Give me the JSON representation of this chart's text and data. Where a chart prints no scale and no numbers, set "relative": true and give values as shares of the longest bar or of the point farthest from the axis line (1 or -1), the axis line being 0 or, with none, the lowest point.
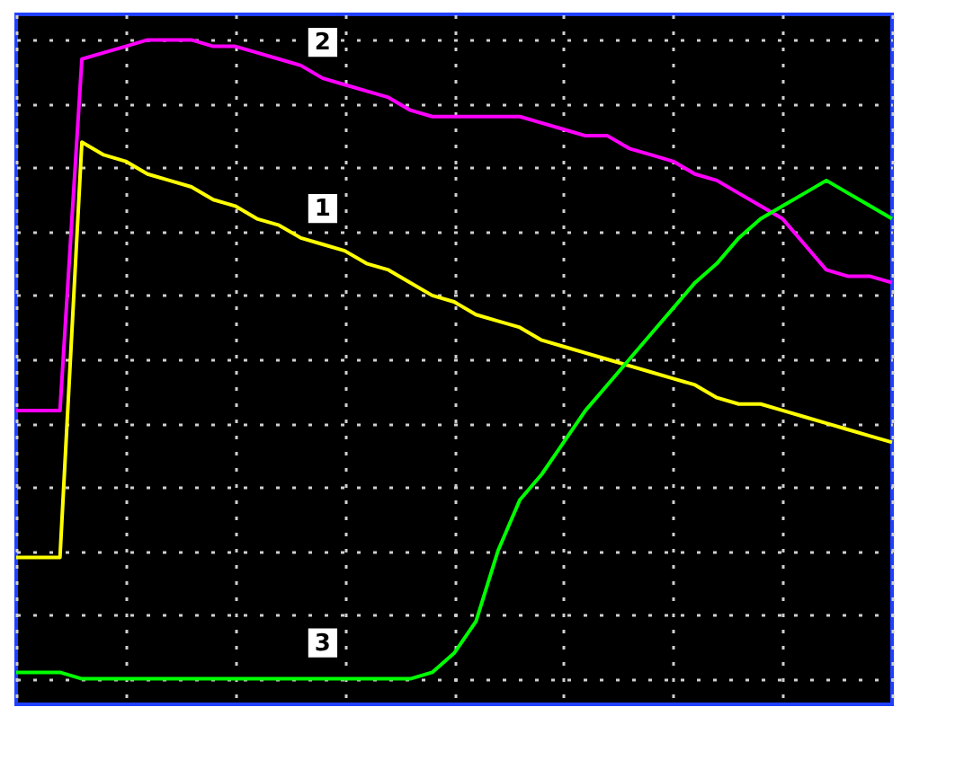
{
  "chart_data": {
    "type": "line",
    "relative": true,
    "grid": true,
    "line_style": "solid",
    "marker": "none",
    "categories": [
      null,
      null,
      null,
      null,
      null,
      null,
      null,
      null,
      null,
      null,
      null,
      null,
      null,
      null,
      null,
      null,
      null,
      null,
      null,
      null,
      null,
      null,
      null,
      null,
      null,
      null,
      null,
      null,
      null,
      null,
      null,
      null,
      null,
      null,
      null,
      null,
      null,
      null,
      null,
      null,
      null
    ],
    "series": [
      {
        "name": "1",
        "color": "#ffff00",
        "values": [
          0.19,
          0.19,
          0.19,
          0.84,
          0.82,
          0.81,
          0.79,
          0.78,
          0.77,
          0.75,
          0.74,
          0.72,
          0.71,
          0.69,
          0.68,
          0.67,
          0.65,
          0.64,
          0.62,
          0.6,
          0.59,
          0.57,
          0.56,
          0.55,
          0.53,
          0.52,
          0.51,
          0.5,
          0.49,
          0.48,
          0.47,
          0.46,
          0.44,
          0.43,
          0.43,
          0.42,
          0.41,
          0.4,
          0.39,
          0.38,
          0.37
        ]
      },
      {
        "name": "2",
        "color": "#ff00ff",
        "values": [
          0.42,
          0.42,
          0.42,
          0.97,
          0.98,
          0.99,
          1.0,
          1.0,
          1.0,
          0.99,
          0.99,
          0.98,
          0.97,
          0.96,
          0.94,
          0.93,
          0.92,
          0.91,
          0.89,
          0.88,
          0.88,
          0.88,
          0.88,
          0.88,
          0.87,
          0.86,
          0.85,
          0.85,
          0.83,
          0.82,
          0.81,
          0.79,
          0.78,
          0.76,
          0.74,
          0.72,
          0.68,
          0.64,
          0.63,
          0.63,
          0.62
        ]
      },
      {
        "name": "3",
        "color": "#00ff00",
        "values": [
          0.01,
          0.01,
          0.01,
          0.0,
          0.0,
          0.0,
          0.0,
          0.0,
          0.0,
          0.0,
          0.0,
          0.0,
          0.0,
          0.0,
          0.0,
          0.0,
          0.0,
          0.0,
          0.0,
          0.01,
          0.04,
          0.09,
          0.2,
          0.28,
          0.32,
          0.37,
          0.42,
          0.46,
          0.5,
          0.54,
          0.58,
          0.62,
          0.65,
          0.69,
          0.72,
          0.74,
          0.76,
          0.78,
          0.76,
          0.74,
          0.72
        ]
      }
    ]
  }
}
